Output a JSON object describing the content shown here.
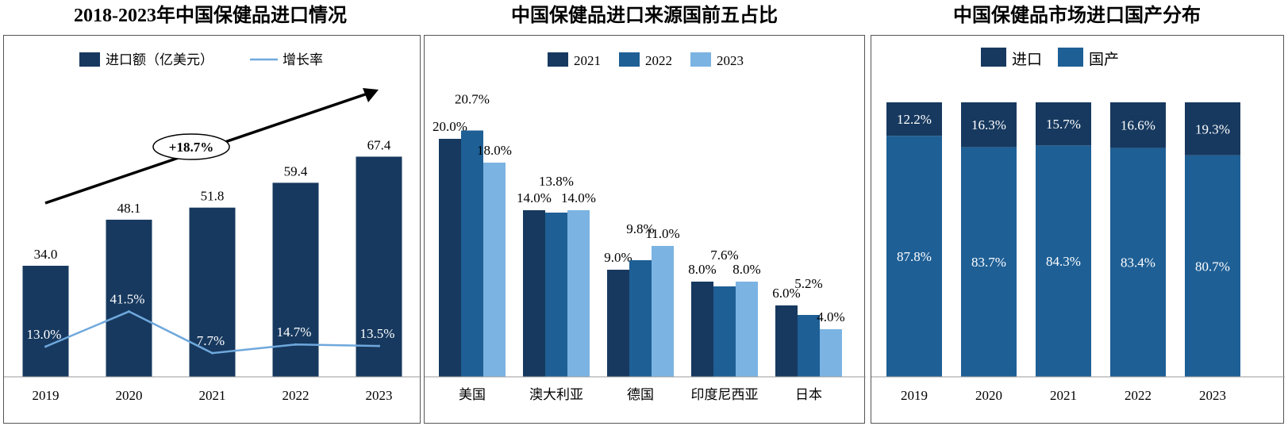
{
  "colors": {
    "dark": "#17395f",
    "mid": "#1e5f95",
    "light": "#7bb3e2",
    "line": "#6fa8dc"
  },
  "chart_data": [
    {
      "type": "bar+line",
      "title": "2018-2023年中国保健品进口情况",
      "categories": [
        "2019",
        "2020",
        "2021",
        "2022",
        "2023"
      ],
      "series": [
        {
          "name": "进口额（亿美元）",
          "type": "bar",
          "values": [
            34.0,
            48.1,
            51.8,
            59.4,
            67.4
          ]
        },
        {
          "name": "增长率",
          "type": "line",
          "values": [
            13.0,
            41.5,
            7.7,
            14.7,
            13.5
          ],
          "unit": "%"
        }
      ],
      "annotation": "+18.7%",
      "legend": "top"
    },
    {
      "type": "bar",
      "title": "中国保健品进口来源国前五占比",
      "categories": [
        "美国",
        "澳大利亚",
        "德国",
        "印度尼西亚",
        "日本"
      ],
      "series": [
        {
          "name": "2021",
          "values": [
            20.0,
            14.0,
            9.0,
            8.0,
            6.0
          ]
        },
        {
          "name": "2022",
          "values": [
            20.7,
            13.8,
            9.8,
            7.6,
            5.2
          ]
        },
        {
          "name": "2023",
          "values": [
            18.0,
            14.0,
            11.0,
            8.0,
            4.0
          ]
        }
      ],
      "unit": "%",
      "legend": "top"
    },
    {
      "type": "stacked-bar",
      "title": "中国保健品市场进口国产分布",
      "categories": [
        "2019",
        "2020",
        "2021",
        "2022",
        "2023"
      ],
      "series": [
        {
          "name": "进口",
          "values": [
            12.2,
            16.3,
            15.7,
            16.6,
            19.3
          ]
        },
        {
          "name": "国产",
          "values": [
            87.8,
            83.7,
            84.3,
            83.4,
            80.7
          ]
        }
      ],
      "unit": "%",
      "legend": "top"
    }
  ]
}
